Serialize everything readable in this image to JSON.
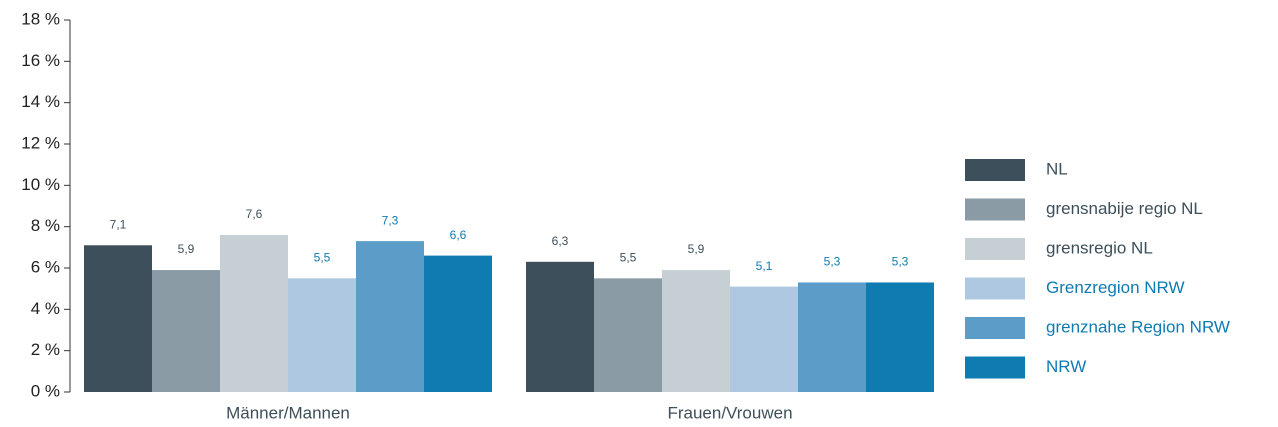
{
  "chart_data": {
    "type": "bar",
    "categories": [
      "Männer/Mannen",
      "Frauen/Vrouwen"
    ],
    "series": [
      {
        "name": "NL",
        "color": "#3d4f5a",
        "label_color": "#3d4f5a",
        "values": [
          7.1,
          6.3
        ],
        "value_labels": [
          "7,1",
          "6,3"
        ]
      },
      {
        "name": "grensnabije regio NL",
        "color": "#8a9ba5",
        "label_color": "#3d4f5a",
        "values": [
          5.9,
          5.5
        ],
        "value_labels": [
          "5,9",
          "5,5"
        ]
      },
      {
        "name": "grensregio NL",
        "color": "#c5cfd4",
        "label_color": "#3d4f5a",
        "values": [
          7.6,
          5.9
        ],
        "value_labels": [
          "7,6",
          "5,9"
        ]
      },
      {
        "name": "Grenzregion NRW",
        "color": "#aec8e2",
        "label_color": "#0e7bb1",
        "values": [
          5.5,
          5.1
        ],
        "value_labels": [
          "5,5",
          "5,1"
        ]
      },
      {
        "name": "grenznahe Region NRW",
        "color": "#5b9cc8",
        "label_color": "#0e7bb1",
        "values": [
          7.3,
          5.3
        ],
        "value_labels": [
          "7,3",
          "5,3"
        ]
      },
      {
        "name": "NRW",
        "color": "#0e7bb1",
        "label_color": "#0e7bb1",
        "values": [
          6.6,
          5.3
        ],
        "value_labels": [
          "6,6",
          "5,3"
        ]
      }
    ],
    "ylim": [
      0,
      18
    ],
    "yticks": [
      {
        "value": 0,
        "label": "0 %"
      },
      {
        "value": 2,
        "label": "2 %"
      },
      {
        "value": 4,
        "label": "4 %"
      },
      {
        "value": 6,
        "label": "6 %"
      },
      {
        "value": 8,
        "label": "8 %"
      },
      {
        "value": 10,
        "label": "10 %"
      },
      {
        "value": 12,
        "label": "12 %"
      },
      {
        "value": 14,
        "label": "14 %"
      },
      {
        "value": 16,
        "label": "16 %"
      },
      {
        "value": 18,
        "label": "18 %"
      }
    ],
    "legend": "right"
  }
}
